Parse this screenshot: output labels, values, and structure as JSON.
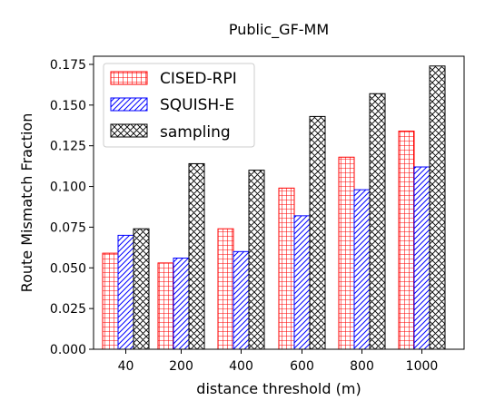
{
  "chart_data": {
    "type": "bar",
    "title": "Public_GF-MM",
    "xlabel": "distance threshold (m)",
    "ylabel": "Route Mismatch Fraction",
    "categories": [
      "40",
      "200",
      "400",
      "600",
      "800",
      "1000"
    ],
    "ylim": [
      0,
      0.18
    ],
    "yticks": [
      "0.000",
      "0.025",
      "0.050",
      "0.075",
      "0.100",
      "0.125",
      "0.150",
      "0.175"
    ],
    "grid": false,
    "legend_position": "top-left",
    "series": [
      {
        "name": "CISED-RPI",
        "color": "#ff0000",
        "pattern": "grid",
        "values": [
          0.059,
          0.053,
          0.074,
          0.099,
          0.118,
          0.134
        ]
      },
      {
        "name": "SQUISH-E",
        "color": "#0000ff",
        "pattern": "diagonal",
        "values": [
          0.07,
          0.056,
          0.06,
          0.082,
          0.098,
          0.112
        ]
      },
      {
        "name": "sampling",
        "color": "#000000",
        "pattern": "crosshatch",
        "values": [
          0.074,
          0.114,
          0.11,
          0.143,
          0.157,
          0.174
        ]
      }
    ]
  }
}
